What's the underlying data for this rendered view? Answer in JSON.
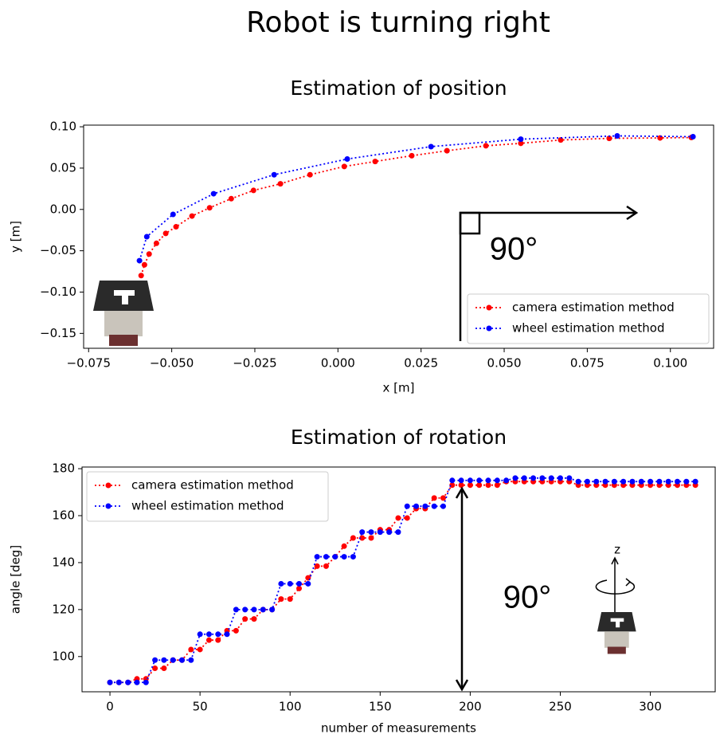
{
  "title": "Robot is turning right",
  "chart_data": [
    {
      "type": "line",
      "title": "Estimation of position",
      "x_label": "x [m]",
      "y_label": "y [m]",
      "xlim": [
        -0.0765,
        0.113
      ],
      "ylim": [
        -0.168,
        0.102
      ],
      "xticks": [
        {
          "value": -0.075,
          "label": "−0.075"
        },
        {
          "value": -0.05,
          "label": "−0.050"
        },
        {
          "value": -0.025,
          "label": "−0.025"
        },
        {
          "value": 0,
          "label": "0.000"
        },
        0.025,
        {
          "value": 0.05,
          "label": "0.050"
        },
        0.075,
        {
          "value": 0.1,
          "label": "0.100"
        }
      ],
      "yticks": [
        {
          "value": -0.15,
          "label": "−0.15"
        },
        {
          "value": -0.1,
          "label": "−0.10"
        },
        {
          "value": -0.05,
          "label": "−0.05"
        },
        {
          "value": 0,
          "label": "0.00"
        },
        0.05,
        {
          "value": 0.1,
          "label": "0.10"
        }
      ],
      "legend": "lower right",
      "annotations": [
        "90°"
      ],
      "series": [
        {
          "name": "camera estimation method",
          "color": "#ff0000",
          "x": [
            -0.0592,
            -0.0582,
            -0.0568,
            -0.0546,
            -0.0518,
            -0.0487,
            -0.0439,
            -0.0386,
            -0.0321,
            -0.0254,
            -0.0173,
            -0.0084,
            0.0019,
            0.0112,
            0.0222,
            0.0328,
            0.0445,
            0.055,
            0.067,
            0.0816,
            0.0969,
            0.1063
          ],
          "values": [
            -0.08,
            -0.067,
            -0.054,
            -0.041,
            -0.029,
            -0.021,
            -0.008,
            0.002,
            0.013,
            0.023,
            0.031,
            0.042,
            0.052,
            0.058,
            0.065,
            0.071,
            0.077,
            0.08,
            0.084,
            0.086,
            0.0865,
            0.087
          ]
        },
        {
          "name": "wheel estimation method",
          "color": "#0000ff",
          "x": [
            -0.0597,
            -0.0575,
            -0.0496,
            -0.0374,
            -0.0192,
            0.0028,
            0.028,
            0.055,
            0.084,
            0.1068
          ],
          "values": [
            -0.062,
            -0.033,
            -0.006,
            0.019,
            0.042,
            0.061,
            0.076,
            0.085,
            0.089,
            0.088
          ]
        }
      ]
    },
    {
      "type": "line",
      "title": "Estimation of rotation",
      "x_label": "number of measurements",
      "y_label": "angle [deg]",
      "xlim": [
        -15.5,
        336
      ],
      "ylim": [
        85,
        180.7
      ],
      "xticks": [
        0,
        50,
        100,
        150,
        200,
        250,
        300
      ],
      "yticks": [
        100,
        120,
        140,
        160,
        180
      ],
      "legend": "upper left",
      "annotations": [
        "90°",
        "z"
      ],
      "series": [
        {
          "name": "camera estimation method",
          "color": "#ff0000",
          "x": [
            0,
            5,
            10,
            15,
            20,
            25,
            30,
            35,
            40,
            45,
            50,
            55,
            60,
            65,
            70,
            75,
            80,
            85,
            90,
            95,
            100,
            105,
            110,
            115,
            120,
            125,
            130,
            135,
            140,
            145,
            150,
            155,
            160,
            165,
            170,
            175,
            180,
            185,
            190,
            195,
            200,
            205,
            210,
            215,
            220,
            225,
            230,
            235,
            240,
            245,
            250,
            255,
            260,
            265,
            270,
            275,
            280,
            285,
            290,
            295,
            300,
            305,
            310,
            315,
            320,
            325
          ],
          "values": [
            89,
            89,
            89,
            90.5,
            90.5,
            95,
            95,
            98.5,
            98.5,
            103,
            103,
            107,
            107,
            111,
            111,
            116,
            116,
            120,
            120,
            124.5,
            124.5,
            129,
            133.5,
            138.5,
            138.5,
            142.5,
            147,
            150.5,
            150.5,
            150.5,
            154,
            154,
            159,
            159,
            163,
            163,
            167.5,
            167.5,
            173,
            173,
            173,
            173,
            173,
            173,
            174.5,
            174.5,
            174.5,
            174.5,
            174.5,
            174.5,
            174.5,
            174.5,
            173,
            173,
            173,
            173,
            173,
            173,
            173,
            173,
            173,
            173,
            173,
            173,
            173,
            173
          ]
        },
        {
          "name": "wheel estimation method",
          "color": "#0000ff",
          "x": [
            0,
            5,
            10,
            15,
            20,
            25,
            30,
            35,
            40,
            45,
            50,
            55,
            60,
            65,
            70,
            75,
            80,
            85,
            90,
            95,
            100,
            105,
            110,
            115,
            120,
            125,
            130,
            135,
            140,
            145,
            150,
            155,
            160,
            165,
            170,
            175,
            180,
            185,
            190,
            195,
            200,
            205,
            210,
            215,
            220,
            225,
            230,
            235,
            240,
            245,
            250,
            255,
            260,
            265,
            270,
            275,
            280,
            285,
            290,
            295,
            300,
            305,
            310,
            315,
            320,
            325
          ],
          "values": [
            89,
            89,
            89,
            89,
            89,
            98.5,
            98.5,
            98.5,
            98.5,
            98.5,
            109.5,
            109.5,
            109.5,
            109.5,
            120,
            120,
            120,
            120,
            120,
            131,
            131,
            131,
            131,
            142.5,
            142.5,
            142.5,
            142.5,
            142.5,
            153,
            153,
            153,
            153,
            153,
            164,
            164,
            164,
            164,
            164,
            175,
            175,
            175,
            175,
            175,
            175,
            175,
            176,
            176,
            176,
            176,
            176,
            176,
            176,
            174.5,
            174.5,
            174.5,
            174.5,
            174.5,
            174.5,
            174.5,
            174.5,
            174.5,
            174.5,
            174.5,
            174.5,
            174.5,
            174.5
          ]
        }
      ]
    }
  ]
}
